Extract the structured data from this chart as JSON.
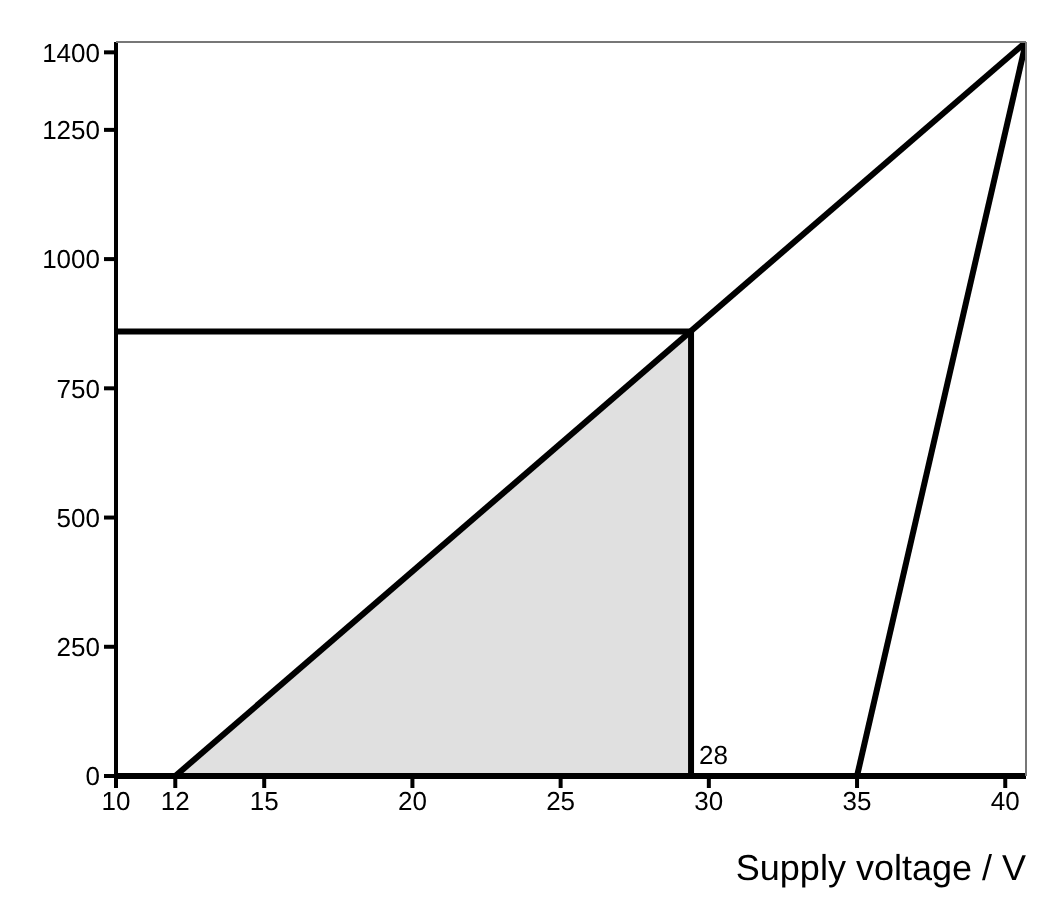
{
  "chart_data": {
    "type": "line",
    "xlabel": "Supply voltage / V",
    "xlim": [
      10,
      40.7
    ],
    "xticks": [
      10,
      12,
      15,
      20,
      25,
      30,
      35,
      40
    ],
    "ylim": [
      0,
      1420
    ],
    "yticks": [
      0,
      250,
      500,
      750,
      1000,
      1250,
      1400
    ],
    "grid": false,
    "legend": false,
    "marker": "none",
    "line_style": "solid",
    "series": [
      {
        "type": "area",
        "color": "#e0e0e0",
        "x": [
          12,
          29.4,
          29.4
        ],
        "values": [
          0,
          860,
          0
        ]
      },
      {
        "color": "#000000",
        "x": [
          12,
          40.7
        ],
        "values": [
          0,
          1420
        ]
      },
      {
        "color": "#000000",
        "x": [
          35,
          40.7
        ],
        "values": [
          0,
          1420
        ]
      },
      {
        "color": "#000000",
        "x": [
          10,
          29.4
        ],
        "values": [
          860,
          860
        ]
      },
      {
        "color": "#000000",
        "x": [
          29.4,
          29.4
        ],
        "values": [
          0,
          860
        ]
      }
    ],
    "annotations": [
      {
        "text": "28",
        "x": 29.4,
        "y": 0
      }
    ]
  }
}
